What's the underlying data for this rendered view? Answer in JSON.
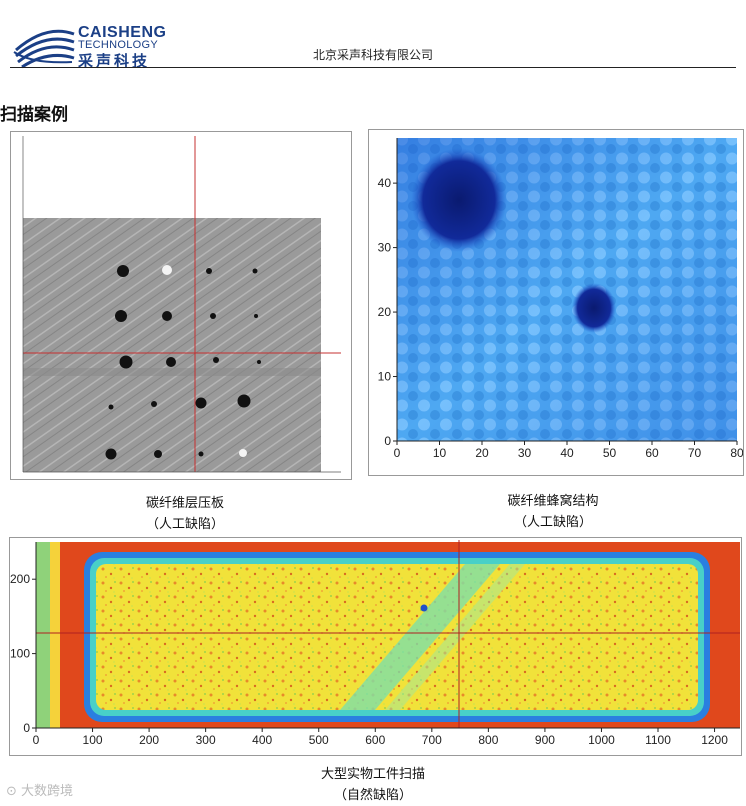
{
  "header": {
    "logo_line1": "CAISHENG",
    "logo_line2": "TECHNOLOGY",
    "logo_line3": "采声科技",
    "company": "北京采声科技有限公司"
  },
  "section_title": "扫描案例",
  "figures": [
    {
      "id": "laminate",
      "caption_line1": "碳纤维层压板",
      "caption_line2": "（人工缺陷）"
    },
    {
      "id": "honeycomb",
      "caption_line1": "碳纤维蜂窝结构",
      "caption_line2": "（人工缺陷）",
      "x_ticks": [
        "0",
        "10",
        "20",
        "30",
        "40",
        "50",
        "60",
        "70",
        "80"
      ],
      "y_ticks": [
        "0",
        "10",
        "20",
        "30",
        "40"
      ]
    },
    {
      "id": "workpiece",
      "caption_line1": "大型实物工件扫描",
      "caption_line2": "（自然缺陷）",
      "x_ticks": [
        "0",
        "100",
        "200",
        "300",
        "400",
        "500",
        "600",
        "700",
        "800",
        "900",
        "1000",
        "1100",
        "1200"
      ],
      "y_ticks": [
        "0",
        "100",
        "200"
      ]
    }
  ],
  "watermark": "大数跨境"
}
